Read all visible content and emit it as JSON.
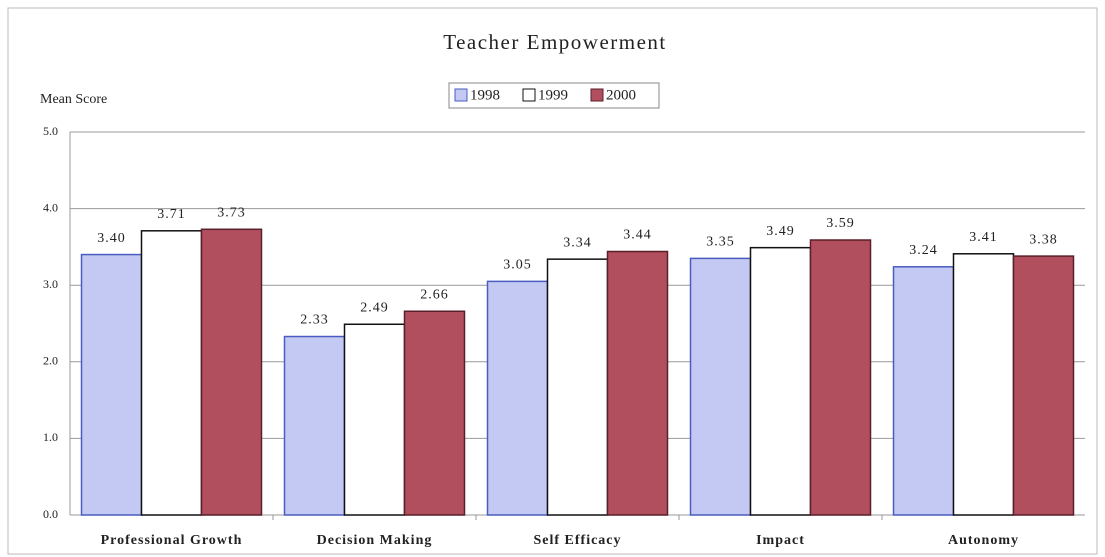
{
  "chart_data": {
    "type": "bar",
    "title": "Teacher Empowerment",
    "y_label": "Mean Score",
    "categories": [
      "Professional Growth",
      "Decision Making",
      "Self Efficacy",
      "Impact",
      "Autonomy"
    ],
    "series": [
      {
        "name": "1998",
        "color": "#c3c9f2",
        "values": [
          3.4,
          2.33,
          3.05,
          3.35,
          3.24
        ],
        "value_labels": [
          "3.40",
          "2.33",
          "3.05",
          "3.35",
          "3.24"
        ]
      },
      {
        "name": "1999",
        "color": "#ffffff",
        "values": [
          3.71,
          2.49,
          3.34,
          3.49,
          3.41
        ],
        "value_labels": [
          "3.71",
          "2.49",
          "3.34",
          "3.49",
          "3.41"
        ]
      },
      {
        "name": "2000",
        "color": "#b24f5e",
        "values": [
          3.73,
          2.66,
          3.44,
          3.59,
          3.38
        ],
        "value_labels": [
          "3.73",
          "2.66",
          "3.44",
          "3.59",
          "3.38"
        ]
      }
    ],
    "ylim": [
      0,
      5
    ],
    "yticks": [
      {
        "value": 0,
        "label": "0.0"
      },
      {
        "value": 1,
        "label": "1.0"
      },
      {
        "value": 2,
        "label": "2.0"
      },
      {
        "value": 3,
        "label": "3.0"
      },
      {
        "value": 4,
        "label": "4.0"
      },
      {
        "value": 5,
        "label": "5.0"
      }
    ],
    "grid": true,
    "legend": "top"
  }
}
